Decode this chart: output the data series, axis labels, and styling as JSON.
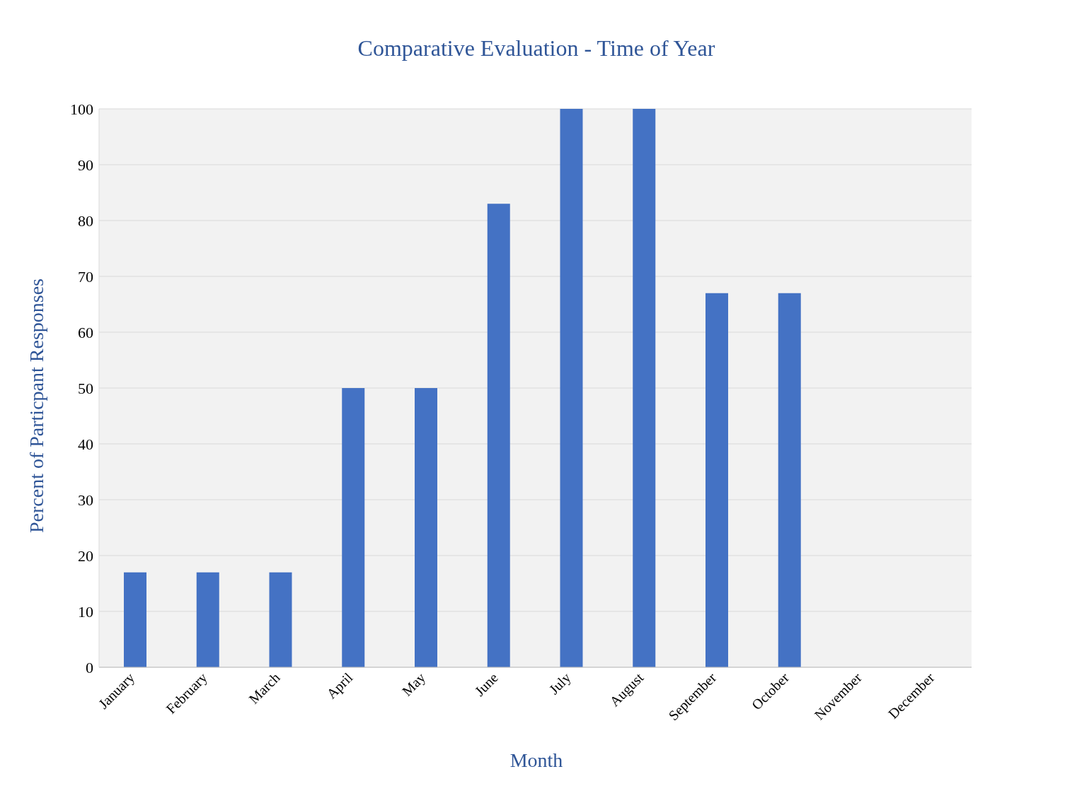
{
  "chart_data": {
    "type": "bar",
    "title": "Comparative Evaluation - Time of Year",
    "xlabel": "Month",
    "ylabel": "Percent of Particpant Responses",
    "categories": [
      "January",
      "February",
      "March",
      "April",
      "May",
      "June",
      "July",
      "August",
      "September",
      "October",
      "November",
      "December"
    ],
    "values": [
      17,
      17,
      17,
      50,
      50,
      83,
      100,
      100,
      67,
      67,
      0,
      0
    ],
    "color": "#4472c4",
    "ylim": [
      0,
      100
    ],
    "yticks": [
      0,
      10,
      20,
      30,
      40,
      50,
      60,
      70,
      80,
      90,
      100
    ],
    "grid": "y"
  }
}
